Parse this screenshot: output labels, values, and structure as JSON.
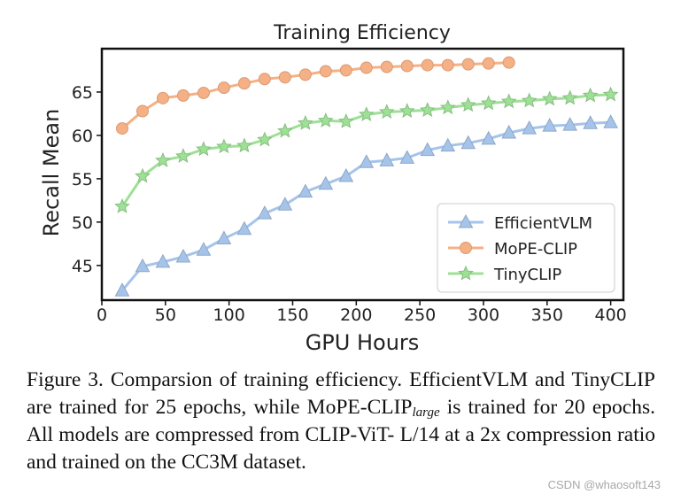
{
  "chart_data": {
    "type": "line",
    "title": "Training Efficiency",
    "xlabel": "GPU Hours",
    "ylabel": "Recall Mean",
    "xlim": [
      0,
      410
    ],
    "ylim": [
      41,
      70
    ],
    "xticks": [
      0,
      50,
      100,
      150,
      200,
      250,
      300,
      350,
      400
    ],
    "yticks": [
      45,
      50,
      55,
      60,
      65
    ],
    "grid": false,
    "legend_position": "lower-right",
    "series": [
      {
        "name": "EfficientVLM",
        "marker": "triangle",
        "color": "#a6c4ea",
        "x": [
          16,
          32,
          48,
          64,
          80,
          96,
          112,
          128,
          144,
          160,
          176,
          192,
          208,
          224,
          240,
          256,
          272,
          288,
          304,
          320,
          336,
          352,
          368,
          384,
          400
        ],
        "y": [
          42.1,
          44.9,
          45.4,
          46.0,
          46.8,
          48.1,
          49.2,
          51.0,
          52.0,
          53.5,
          54.4,
          55.3,
          56.9,
          57.1,
          57.4,
          58.3,
          58.8,
          59.1,
          59.6,
          60.3,
          60.8,
          61.1,
          61.2,
          61.4,
          61.5
        ]
      },
      {
        "name": "MoPE-CLIP",
        "marker": "circle",
        "color": "#f5b085",
        "x": [
          16,
          32,
          48,
          64,
          80,
          96,
          112,
          128,
          144,
          160,
          176,
          192,
          208,
          224,
          240,
          256,
          272,
          288,
          304,
          320
        ],
        "y": [
          60.8,
          62.8,
          64.3,
          64.6,
          64.9,
          65.5,
          66.0,
          66.5,
          66.7,
          67.0,
          67.4,
          67.5,
          67.8,
          67.9,
          68.0,
          68.1,
          68.1,
          68.2,
          68.3,
          68.4
        ]
      },
      {
        "name": "TinyCLIP",
        "marker": "star",
        "color": "#9ee096",
        "x": [
          16,
          32,
          48,
          64,
          80,
          96,
          112,
          128,
          144,
          160,
          176,
          192,
          208,
          224,
          240,
          256,
          272,
          288,
          304,
          320,
          336,
          352,
          368,
          384,
          400
        ],
        "y": [
          51.8,
          55.3,
          57.1,
          57.6,
          58.4,
          58.7,
          58.8,
          59.5,
          60.5,
          61.4,
          61.7,
          61.6,
          62.4,
          62.7,
          62.8,
          62.9,
          63.2,
          63.5,
          63.7,
          63.9,
          64.0,
          64.2,
          64.3,
          64.6,
          64.7
        ]
      }
    ]
  },
  "caption": {
    "line1": "Figure 3.  Comparsion of training efficiency.  EfficientVLM and",
    "line2_before": "TinyCLIP are trained for 25 epochs, while MoPE-CLIP",
    "line2_sub": "large",
    "line2_after": " is",
    "line3": "trained for 20 epochs. All models are compressed from CLIP-ViT-",
    "line4": "L/14 at a 2x compression ratio and trained on the CC3M dataset."
  },
  "watermark": "CSDN @whaosoft143"
}
